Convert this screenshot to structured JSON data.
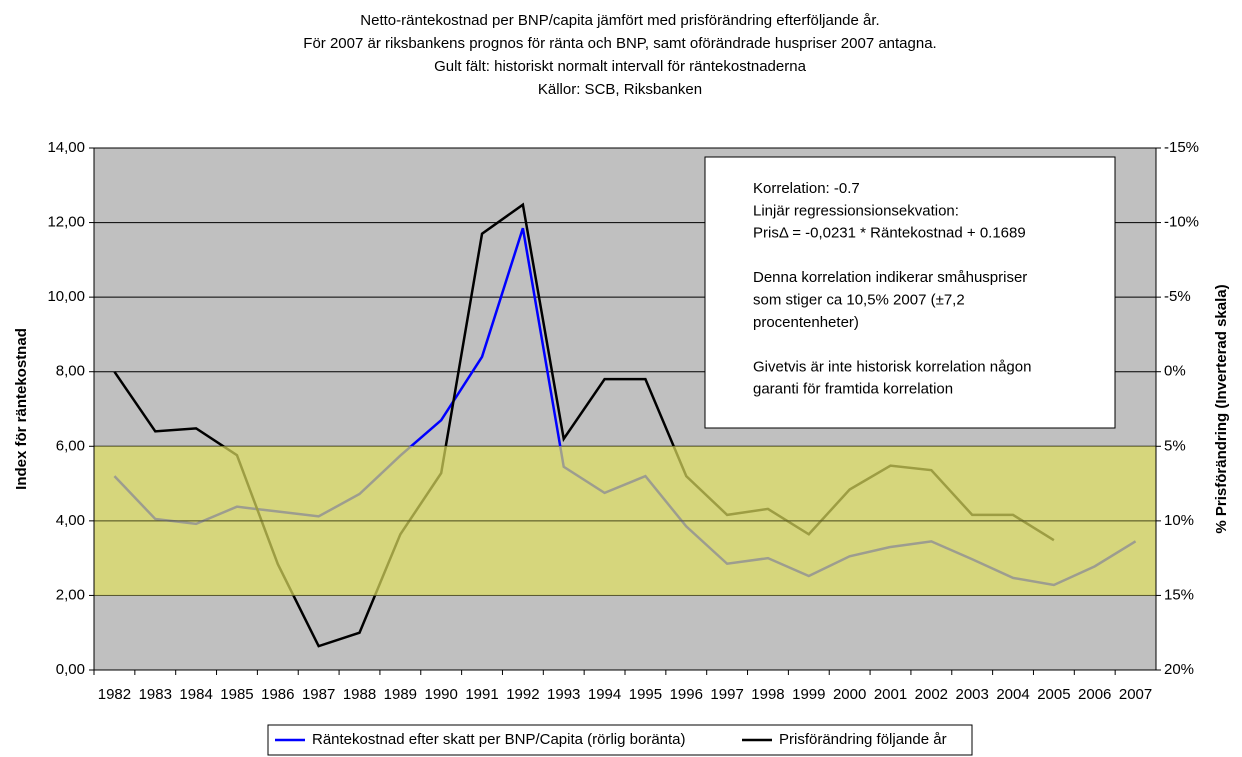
{
  "chart_data": {
    "type": "line",
    "title": [
      "Netto-räntekostnad per BNP/capita jämfört med prisförändring efterföljande år.",
      "För 2007 är riksbankens prognos för ränta och BNP, samt oförändrade huspriser 2007 antagna.",
      "Gult fält: historiskt normalt intervall för räntekostnaderna",
      "Källor: SCB, Riksbanken"
    ],
    "y_label": "Index för räntekostnad",
    "y2_label": "% Prisförändring (Inverterad skala)",
    "categories": [
      "1982",
      "1983",
      "1984",
      "1985",
      "1986",
      "1987",
      "1988",
      "1989",
      "1990",
      "1991",
      "1992",
      "1993",
      "1994",
      "1995",
      "1996",
      "1997",
      "1998",
      "1999",
      "2000",
      "2001",
      "2002",
      "2003",
      "2004",
      "2005",
      "2006",
      "2007"
    ],
    "series": [
      {
        "name": "Räntekostnad efter skatt per BNP/Capita (rörlig boränta)",
        "color": "#0000ff",
        "values": [
          5.2,
          4.05,
          3.92,
          4.38,
          4.25,
          4.12,
          4.72,
          5.75,
          6.7,
          8.4,
          11.85,
          5.45,
          4.75,
          5.2,
          3.85,
          2.85,
          3.0,
          2.52,
          3.05,
          3.3,
          3.45,
          2.97,
          2.47,
          2.28,
          2.78,
          3.45
        ]
      },
      {
        "name": "Prisförändring följande år",
        "color": "#000000",
        "axis": "y2",
        "values": [
          0,
          4.0,
          3.8,
          5.6,
          12.9,
          18.4,
          17.5,
          10.9,
          6.8,
          -9.25,
          -11.2,
          4.5,
          0.5,
          0.5,
          7.0,
          9.6,
          9.2,
          10.9,
          7.9,
          6.3,
          6.6,
          9.6,
          9.6,
          11.3,
          null,
          null
        ]
      }
    ],
    "ylim": [
      0,
      14
    ],
    "yticks": [
      {
        "value": 0,
        "label": "0,00"
      },
      {
        "value": 2,
        "label": "2,00"
      },
      {
        "value": 4,
        "label": "4,00"
      },
      {
        "value": 6,
        "label": "6,00"
      },
      {
        "value": 8,
        "label": "8,00"
      },
      {
        "value": 10,
        "label": "10,00"
      },
      {
        "value": 12,
        "label": "12,00"
      },
      {
        "value": 14,
        "label": "14,00"
      }
    ],
    "y2lim": [
      20,
      -15
    ],
    "y2ticks": [
      {
        "value": -15,
        "label": "-15%"
      },
      {
        "value": -10,
        "label": "-10%"
      },
      {
        "value": -5,
        "label": "-5%"
      },
      {
        "value": 0,
        "label": "0%"
      },
      {
        "value": 5,
        "label": "5%"
      },
      {
        "value": 10,
        "label": "10%"
      },
      {
        "value": 15,
        "label": "15%"
      },
      {
        "value": 20,
        "label": "20%"
      }
    ],
    "band": [
      2,
      6
    ],
    "band_color": "#e0e060",
    "plot_background": "#c0c0c0",
    "grid": true,
    "legend": "bottom",
    "annotation": [
      "Korrelation: -0.7",
      "Linjär regressionsionsekvation:",
      "PrisΔ = -0,0231 * Räntekostnad + 0.1689",
      "",
      "Denna korrelation indikerar småhuspriser",
      "som stiger ca 10,5% 2007 (±7,2",
      "procentenheter)",
      "",
      "Givetvis är inte historisk korrelation någon",
      "garanti för framtida korrelation"
    ]
  }
}
